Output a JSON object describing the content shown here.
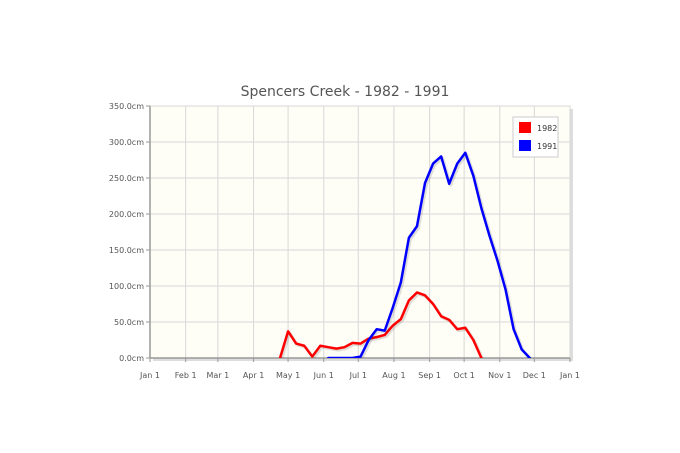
{
  "chart_data": {
    "type": "line",
    "title": "Spencers Creek - 1982 - 1991",
    "xlabel": "",
    "ylabel": "",
    "x_ticks": [
      "Jan 1",
      "Feb 1",
      "Mar 1",
      "Apr 1",
      "May 1",
      "Jun 1",
      "Jul 1",
      "Aug 1",
      "Sep 1",
      "Oct 1",
      "Nov 1",
      "Dec 1",
      "Jan 1"
    ],
    "y_ticks": [
      "0.0cm",
      "50.0cm",
      "100.0cm",
      "150.0cm",
      "200.0cm",
      "250.0cm",
      "300.0cm",
      "350.0cm"
    ],
    "ylim": [
      0,
      350
    ],
    "grid": true,
    "legend_position": "top-right",
    "series": [
      {
        "name": "1982",
        "color": "#ff0000",
        "points": [
          [
            "1982-04-24",
            0
          ],
          [
            "1982-05-01",
            37
          ],
          [
            "1982-05-08",
            20
          ],
          [
            "1982-05-15",
            17
          ],
          [
            "1982-05-22",
            2
          ],
          [
            "1982-05-29",
            17
          ],
          [
            "1982-06-05",
            15
          ],
          [
            "1982-06-12",
            13
          ],
          [
            "1982-06-19",
            15
          ],
          [
            "1982-06-26",
            21
          ],
          [
            "1982-07-03",
            20
          ],
          [
            "1982-07-10",
            27
          ],
          [
            "1982-07-17",
            29
          ],
          [
            "1982-07-24",
            32
          ],
          [
            "1982-07-31",
            45
          ],
          [
            "1982-08-07",
            54
          ],
          [
            "1982-08-14",
            80
          ],
          [
            "1982-08-21",
            91
          ],
          [
            "1982-08-28",
            87
          ],
          [
            "1982-09-04",
            75
          ],
          [
            "1982-09-11",
            58
          ],
          [
            "1982-09-18",
            53
          ],
          [
            "1982-09-25",
            40
          ],
          [
            "1982-10-02",
            42
          ],
          [
            "1982-10-09",
            25
          ],
          [
            "1982-10-16",
            0
          ]
        ]
      },
      {
        "name": "1991",
        "color": "#0000ff",
        "points": [
          [
            "1991-06-05",
            0
          ],
          [
            "1991-06-12",
            0
          ],
          [
            "1991-06-19",
            0
          ],
          [
            "1991-06-26",
            0
          ],
          [
            "1991-07-03",
            2
          ],
          [
            "1991-07-10",
            25
          ],
          [
            "1991-07-17",
            40
          ],
          [
            "1991-07-24",
            38
          ],
          [
            "1991-07-31",
            70
          ],
          [
            "1991-08-07",
            105
          ],
          [
            "1991-08-14",
            167
          ],
          [
            "1991-08-21",
            183
          ],
          [
            "1991-08-28",
            243
          ],
          [
            "1991-09-04",
            270
          ],
          [
            "1991-09-11",
            280
          ],
          [
            "1991-09-18",
            242
          ],
          [
            "1991-09-25",
            270
          ],
          [
            "1991-10-02",
            285
          ],
          [
            "1991-10-09",
            253
          ],
          [
            "1991-10-16",
            208
          ],
          [
            "1991-10-23",
            170
          ],
          [
            "1991-10-30",
            135
          ],
          [
            "1991-11-06",
            95
          ],
          [
            "1991-11-13",
            40
          ],
          [
            "1991-11-20",
            12
          ],
          [
            "1991-11-27",
            0
          ]
        ]
      }
    ],
    "colors": {
      "plot_background": "#fefdf6",
      "grid": "#d8d8d8",
      "axis": "#999999"
    }
  }
}
